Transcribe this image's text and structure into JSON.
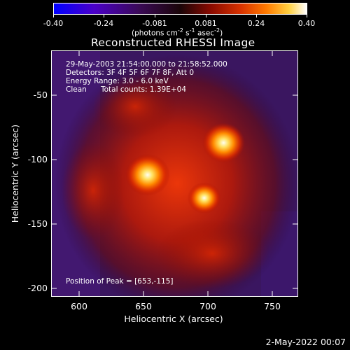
{
  "colorbar": {
    "tick_labels": [
      "-0.40",
      "-0.24",
      "-0.081",
      "0.081",
      "0.24",
      "0.40"
    ],
    "range": [
      -0.4,
      0.4
    ],
    "units": "(photons cm",
    "units_exp1": "-2",
    "units_mid1": " s",
    "units_exp2": "-1",
    "units_mid2": " asec",
    "units_exp3": "-2",
    "units_end": ")"
  },
  "title": "Reconstructed RHESSI Image",
  "info": {
    "time": "29-May-2003 21:54:00.000 to 21:58:52.000",
    "detectors": "Detectors: 3F 4F 5F 6F 7F 8F, Att 0",
    "energy": "Energy Range: 3.0 - 6.0 keV",
    "algorithm": "Clean",
    "counts": "Total counts: 1.39E+04",
    "peak": "Position of Peak = [653,-115]"
  },
  "axes": {
    "xlabel": "Heliocentric X (arcsec)",
    "ylabel": "Heliocentric Y (arcsec)",
    "xrange": [
      578,
      770
    ],
    "yrange": [
      -210,
      -18
    ],
    "xticks": [
      "600",
      "650",
      "700",
      "750"
    ],
    "yticks": [
      "-50",
      "-100",
      "-150",
      "-200"
    ]
  },
  "image_data": {
    "sources": [
      {
        "x": 653,
        "y": -115,
        "level": 1.0
      },
      {
        "x": 712,
        "y": -90,
        "level": 0.95
      },
      {
        "x": 697,
        "y": -133,
        "level": 0.75
      }
    ]
  },
  "footer_date": "2-May-2022 00:07"
}
